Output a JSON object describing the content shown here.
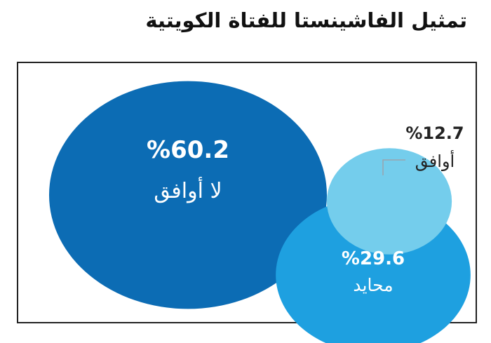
{
  "title": "تمثيل الفاشينستا للفتاة الكويتية",
  "chart_data": {
    "type": "bubble",
    "title": "تمثيل الفاشينستا للفتاة الكويتية",
    "categories": [
      "لا أوافق",
      "محايد",
      "أوافق"
    ],
    "values": [
      60.2,
      29.6,
      12.7
    ],
    "value_labels": [
      "%60.2",
      "%29.6",
      "%12.7"
    ],
    "colors": [
      "#0C6CB4",
      "#1EA0E0",
      "#74CDEC"
    ],
    "unit": "%"
  }
}
